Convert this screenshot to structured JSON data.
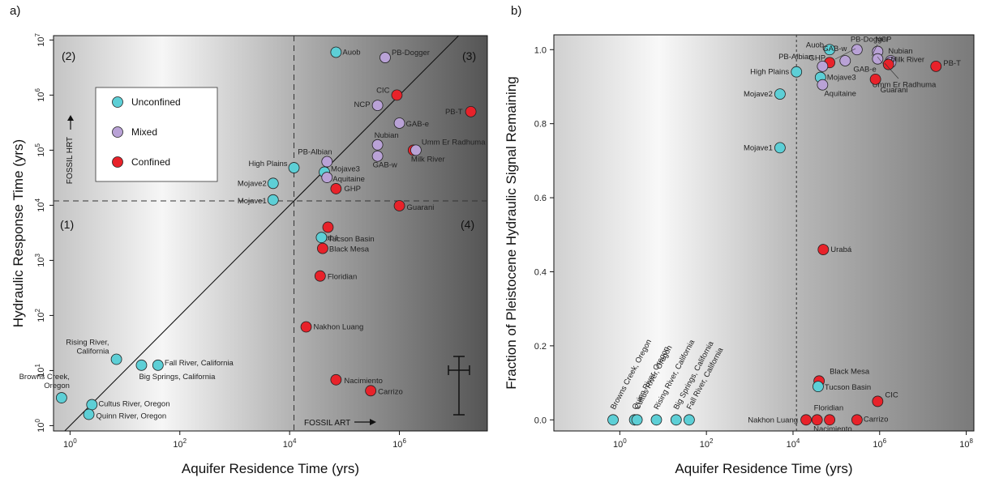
{
  "colors": {
    "unconfined": "#5dcfd6",
    "mixed": "#b9a2d6",
    "confined": "#e8222a"
  },
  "chart_data": [
    {
      "panel": "a)",
      "type": "scatter",
      "xlabel": "Aquifer Residence Time (yrs)",
      "ylabel": "Hydraulic Response Time (yrs)",
      "x_scale": "log",
      "y_scale": "log",
      "xlim": [
        0.5,
        40000000
      ],
      "ylim": [
        0.8,
        12000000
      ],
      "x_ticks": [
        1,
        100,
        10000,
        1000000
      ],
      "x_tick_labels": [
        "10^0",
        "10^2",
        "10^4",
        "10^6"
      ],
      "y_ticks": [
        1,
        10,
        100,
        1000,
        10000,
        100000,
        1000000,
        10000000
      ],
      "y_tick_labels": [
        "10^0",
        "10^1",
        "10^2",
        "10^3",
        "10^4",
        "10^5",
        "10^6",
        "10^7"
      ],
      "quadrants": [
        "(1)",
        "(2)",
        "(3)",
        "(4)"
      ],
      "annotations": {
        "fossil_hrt": "FOSSIL HRT",
        "fossil_art": "FOSSIL ART"
      },
      "legend": {
        "placement": "upper-left",
        "entries": [
          "Unconfined",
          "Mixed",
          "Confined"
        ]
      },
      "points": [
        {
          "label": "Auob",
          "x": 70000,
          "y": 6000000,
          "type": "unconfined"
        },
        {
          "label": "PB-Dogger",
          "x": 550000,
          "y": 4800000,
          "type": "mixed"
        },
        {
          "label": "CIC",
          "x": 900000,
          "y": 1000000,
          "type": "confined"
        },
        {
          "label": "NCP",
          "x": 400000,
          "y": 650000,
          "type": "mixed"
        },
        {
          "label": "PB-T",
          "x": 20000000,
          "y": 500000,
          "type": "confined"
        },
        {
          "label": "GAB-e",
          "x": 1000000,
          "y": 310000,
          "type": "mixed"
        },
        {
          "label": "Nubian",
          "x": 400000,
          "y": 125000,
          "type": "mixed"
        },
        {
          "label": "Umm Er Radhuma",
          "x": 1800000,
          "y": 100000,
          "type": "confined"
        },
        {
          "label": "Milk River",
          "x": 2000000,
          "y": 100000,
          "type": "mixed"
        },
        {
          "label": "GAB-w",
          "x": 400000,
          "y": 78000,
          "type": "mixed"
        },
        {
          "label": "PB-Albian",
          "x": 48000,
          "y": 62000,
          "type": "mixed"
        },
        {
          "label": "High Plains",
          "x": 12000,
          "y": 48000,
          "type": "unconfined"
        },
        {
          "label": "Mojave3",
          "x": 43000,
          "y": 40000,
          "type": "unconfined"
        },
        {
          "label": "Aquitaine",
          "x": 48000,
          "y": 32000,
          "type": "mixed"
        },
        {
          "label": "Mojave2",
          "x": 5000,
          "y": 25000,
          "type": "unconfined"
        },
        {
          "label": "GHP",
          "x": 70000,
          "y": 20000,
          "type": "confined"
        },
        {
          "label": "Mojave1",
          "x": 5000,
          "y": 12500,
          "type": "unconfined"
        },
        {
          "label": "Guarani",
          "x": 1000000,
          "y": 9800,
          "type": "confined"
        },
        {
          "label": "Urabá",
          "x": 50000,
          "y": 4000,
          "type": "confined"
        },
        {
          "label": "Tucson Basin",
          "x": 38000,
          "y": 2600,
          "type": "unconfined"
        },
        {
          "label": "Black Mesa",
          "x": 40000,
          "y": 1650,
          "type": "confined"
        },
        {
          "label": "Floridian",
          "x": 36000,
          "y": 520,
          "type": "confined"
        },
        {
          "label": "Nakhon Luang",
          "x": 20000,
          "y": 62,
          "type": "confined"
        },
        {
          "label": "Rising River,\nCalifornia",
          "x": 7,
          "y": 16,
          "type": "unconfined"
        },
        {
          "label": "Big Springs, California",
          "x": 20,
          "y": 12.5,
          "type": "unconfined"
        },
        {
          "label": "Fall River, California",
          "x": 40,
          "y": 12.5,
          "type": "unconfined"
        },
        {
          "label": "Nacimiento",
          "x": 70000,
          "y": 6.8,
          "type": "confined"
        },
        {
          "label": "Carrizo",
          "x": 300000,
          "y": 4.3,
          "type": "confined"
        },
        {
          "label": "Browns Creek,\nOregon",
          "x": 0.7,
          "y": 3.2,
          "type": "unconfined"
        },
        {
          "label": "Cultus River, Oregon",
          "x": 2.5,
          "y": 2.4,
          "type": "unconfined"
        },
        {
          "label": "Quinn River, Oregon",
          "x": 2.2,
          "y": 1.6,
          "type": "unconfined"
        }
      ]
    },
    {
      "panel": "b)",
      "type": "scatter",
      "xlabel": "Aquifer Residence Time (yrs)",
      "ylabel": "Fraction of Pleistocene Hydraulic Signal Remaining",
      "x_scale": "log",
      "y_scale": "linear",
      "xlim": [
        0.03,
        150000000
      ],
      "ylim": [
        -0.03,
        1.04
      ],
      "x_ticks": [
        1,
        100,
        10000,
        1000000,
        100000000
      ],
      "x_tick_labels": [
        "10^0",
        "10^2",
        "10^4",
        "10^6",
        "10^8"
      ],
      "y_ticks": [
        0.0,
        0.2,
        0.4,
        0.6,
        0.8,
        1.0
      ],
      "y_tick_labels": [
        "0.0",
        "0.2",
        "0.4",
        "0.6",
        "0.8",
        "1.0"
      ],
      "points": [
        {
          "label": "PB-Dogger",
          "x": 300000,
          "y": 1.0,
          "type": "mixed"
        },
        {
          "label": "Auob",
          "x": 70000,
          "y": 1.0,
          "type": "unconfined"
        },
        {
          "label": "NCP",
          "x": 900000,
          "y": 0.995,
          "type": "mixed"
        },
        {
          "label": "GAB-w",
          "x": 160000,
          "y": 0.97,
          "type": "mixed"
        },
        {
          "label": "Nubian",
          "x": 1800000,
          "y": 0.97,
          "type": "mixed"
        },
        {
          "label": "Milk River",
          "x": 1800000,
          "y": 0.965,
          "type": "mixed"
        },
        {
          "label": "GHP",
          "x": 70000,
          "y": 0.965,
          "type": "confined"
        },
        {
          "label": "GAB-e",
          "x": 900000,
          "y": 0.975,
          "type": "mixed"
        },
        {
          "label": "PB-Albian",
          "x": 48000,
          "y": 0.955,
          "type": "mixed"
        },
        {
          "label": "PB-T",
          "x": 20000000,
          "y": 0.955,
          "type": "confined"
        },
        {
          "label": "High Plains",
          "x": 12000,
          "y": 0.94,
          "type": "unconfined"
        },
        {
          "label": "Umm Er Radhuma",
          "x": 1600000,
          "y": 0.96,
          "type": "confined"
        },
        {
          "label": "Mojave3",
          "x": 43000,
          "y": 0.925,
          "type": "unconfined"
        },
        {
          "label": "Guarani",
          "x": 800000,
          "y": 0.92,
          "type": "confined"
        },
        {
          "label": "Aquitaine",
          "x": 48000,
          "y": 0.905,
          "type": "mixed"
        },
        {
          "label": "Mojave2",
          "x": 5000,
          "y": 0.88,
          "type": "unconfined"
        },
        {
          "label": "Mojave1",
          "x": 5000,
          "y": 0.735,
          "type": "unconfined"
        },
        {
          "label": "Urabá",
          "x": 50000,
          "y": 0.46,
          "type": "confined"
        },
        {
          "label": "Black Mesa",
          "x": 40000,
          "y": 0.105,
          "type": "confined"
        },
        {
          "label": "Tucson Basin",
          "x": 38000,
          "y": 0.09,
          "type": "unconfined"
        },
        {
          "label": "CIC",
          "x": 900000,
          "y": 0.05,
          "type": "confined"
        },
        {
          "label": "Browns Creek, Oregon",
          "x": 0.7,
          "y": 0.0,
          "type": "unconfined"
        },
        {
          "label": "Quinn River, Oregon",
          "x": 2.2,
          "y": 0.0,
          "type": "unconfined"
        },
        {
          "label": "Cultus River, Oregon",
          "x": 2.5,
          "y": 0.0,
          "type": "unconfined"
        },
        {
          "label": "Rising River, California",
          "x": 7,
          "y": 0.0,
          "type": "unconfined"
        },
        {
          "label": "Big Springs, California",
          "x": 20,
          "y": 0.0,
          "type": "unconfined"
        },
        {
          "label": "Fall River, California",
          "x": 40,
          "y": 0.0,
          "type": "unconfined"
        },
        {
          "label": "Nakhon Luang",
          "x": 20000,
          "y": 0.0,
          "type": "confined"
        },
        {
          "label": "Floridian",
          "x": 36000,
          "y": 0.0,
          "type": "confined"
        },
        {
          "label": "Nacimiento",
          "x": 70000,
          "y": 0.0,
          "type": "confined"
        },
        {
          "label": "Carrizo",
          "x": 300000,
          "y": 0.0,
          "type": "confined"
        }
      ]
    }
  ]
}
